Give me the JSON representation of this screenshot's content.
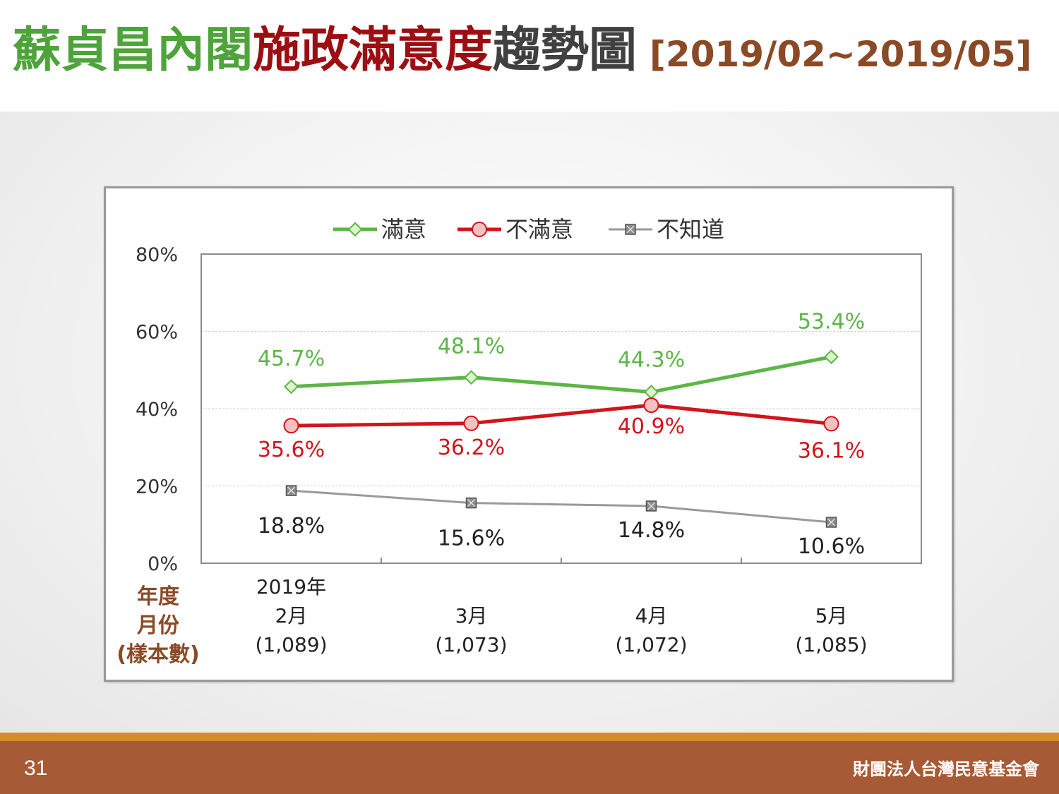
{
  "title": {
    "part1": "蘇貞昌內閣",
    "part2": "施政滿意度",
    "part3": "趨勢圖",
    "range": "[2019/02~2019/05]"
  },
  "footer": {
    "page_number": "31",
    "organization": "財團法人台灣民意基金會"
  },
  "colors": {
    "satisfied": "#5cb646",
    "dissatisfied": "#d2141c",
    "unknown": "#9a9a9a",
    "category_label": "#8a4a26"
  },
  "chart_data": {
    "type": "line",
    "ylim": [
      0,
      80
    ],
    "yticks": [
      "80%",
      "60%",
      "40%",
      "20%",
      "0%"
    ],
    "ytick_values": [
      80,
      60,
      40,
      20,
      0
    ],
    "grid": true,
    "legend_position": "top",
    "category_axis_label": [
      "年度",
      "月份",
      "(樣本數)"
    ],
    "categories": [
      {
        "lines": [
          "2019年",
          "2月",
          "(1,089)"
        ]
      },
      {
        "lines": [
          "3月",
          "(1,073)"
        ]
      },
      {
        "lines": [
          "4月",
          "(1,072)"
        ]
      },
      {
        "lines": [
          "5月",
          "(1,085)"
        ]
      }
    ],
    "series": [
      {
        "name": "滿意",
        "marker": "diamond",
        "values": [
          45.7,
          48.1,
          44.3,
          53.4
        ],
        "labels": [
          "45.7%",
          "48.1%",
          "44.3%",
          "53.4%"
        ]
      },
      {
        "name": "不滿意",
        "marker": "circle",
        "values": [
          35.6,
          36.2,
          40.9,
          36.1
        ],
        "labels": [
          "35.6%",
          "36.2%",
          "40.9%",
          "36.1%"
        ]
      },
      {
        "name": "不知道",
        "marker": "square",
        "values": [
          18.8,
          15.6,
          14.8,
          10.6
        ],
        "labels": [
          "18.8%",
          "15.6%",
          "14.8%",
          "10.6%"
        ]
      }
    ]
  }
}
